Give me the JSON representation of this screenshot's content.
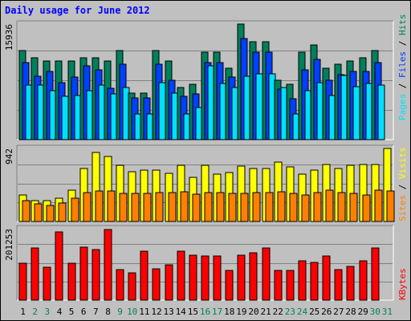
{
  "title": "Daily usage for June 2012",
  "colors": {
    "hits": "#00805c",
    "files": "#0040ff",
    "pages": "#00e0ff",
    "visits": "#ffff00",
    "sites": "#ff8000",
    "kbytes": "#ff0000",
    "weekday": "#000000",
    "weekend": "#00805c"
  },
  "chart_data": [
    {
      "type": "bar",
      "panel": "top",
      "categories": [
        "1",
        "2",
        "3",
        "4",
        "5",
        "6",
        "7",
        "8",
        "9",
        "10",
        "11",
        "12",
        "13",
        "14",
        "15",
        "16",
        "17",
        "18",
        "19",
        "20",
        "21",
        "22",
        "23",
        "24",
        "25",
        "26",
        "27",
        "28",
        "29",
        "30",
        "31"
      ],
      "ymax_label": "15936",
      "ylim": [
        0,
        15936
      ],
      "series": [
        {
          "name": "Hits",
          "values": [
            12300,
            11340,
            10860,
            10860,
            10860,
            11340,
            11340,
            10860,
            12300,
            6470,
            6470,
            12300,
            10860,
            7170,
            7640,
            12060,
            12060,
            9900,
            15936,
            13500,
            13500,
            8230,
            7640,
            12060,
            13020,
            9900,
            10380,
            10860,
            11340,
            12300,
            0
          ]
        },
        {
          "name": "Files",
          "values": [
            10620,
            8710,
            9420,
            7880,
            8590,
            10140,
            9660,
            7050,
            10380,
            5750,
            5750,
            10380,
            8230,
            5990,
            6350,
            10620,
            10620,
            8590,
            13980,
            12060,
            12060,
            6950,
            5630,
            9660,
            11100,
            8230,
            8950,
            9420,
            9420,
            10620,
            0
          ]
        },
        {
          "name": "Pages",
          "values": [
            7520,
            7520,
            6710,
            5990,
            6120,
            6710,
            7520,
            6350,
            7160,
            3590,
            3590,
            7880,
            6470,
            3590,
            4430,
            10140,
            7760,
            7160,
            8710,
            9060,
            9060,
            7160,
            3590,
            6710,
            7880,
            6110,
            8830,
            7290,
            7760,
            7520,
            0
          ]
        }
      ],
      "legend": [
        "Pages",
        "Files",
        "Hits"
      ],
      "grid": true
    },
    {
      "type": "bar",
      "panel": "middle",
      "categories": [
        "1",
        "2",
        "3",
        "4",
        "5",
        "6",
        "7",
        "8",
        "9",
        "10",
        "11",
        "12",
        "13",
        "14",
        "15",
        "16",
        "17",
        "18",
        "19",
        "20",
        "21",
        "22",
        "23",
        "24",
        "25",
        "26",
        "27",
        "28",
        "29",
        "30",
        "31"
      ],
      "ymax_label": "942",
      "ylim": [
        0,
        942
      ],
      "series": [
        {
          "name": "Visits",
          "values": [
            340,
            270,
            270,
            300,
            400,
            680,
            890,
            840,
            720,
            640,
            660,
            660,
            620,
            720,
            570,
            720,
            610,
            630,
            710,
            680,
            680,
            770,
            700,
            610,
            660,
            730,
            680,
            720,
            730,
            740,
            942
          ]
        },
        {
          "name": "Sites",
          "values": [
            270,
            230,
            210,
            240,
            300,
            370,
            390,
            390,
            360,
            360,
            360,
            370,
            370,
            380,
            350,
            370,
            370,
            360,
            360,
            370,
            370,
            380,
            360,
            340,
            370,
            400,
            370,
            360,
            340,
            400,
            390
          ]
        }
      ],
      "legend": [
        "Sites",
        "Visits"
      ],
      "grid": true
    },
    {
      "type": "bar",
      "panel": "bottom",
      "categories": [
        "1",
        "2",
        "3",
        "4",
        "5",
        "6",
        "7",
        "8",
        "9",
        "10",
        "11",
        "12",
        "13",
        "14",
        "15",
        "16",
        "17",
        "18",
        "19",
        "20",
        "21",
        "22",
        "23",
        "24",
        "25",
        "26",
        "27",
        "28",
        "29",
        "30",
        "31"
      ],
      "ymax_label": "201253",
      "ylim": [
        0,
        201253
      ],
      "series": [
        {
          "name": "KBytes",
          "values": [
            103000,
            148000,
            92000,
            193000,
            103000,
            150000,
            142000,
            199000,
            87000,
            77000,
            139000,
            89000,
            100000,
            139000,
            126000,
            124000,
            124000,
            83000,
            127000,
            134000,
            148000,
            83000,
            83000,
            110000,
            107000,
            124000,
            85000,
            94000,
            110000,
            148000,
            0
          ]
        }
      ],
      "legend": [
        "KBytes"
      ],
      "grid": true
    }
  ],
  "weekend_days": [
    "2",
    "3",
    "9",
    "10",
    "16",
    "17",
    "23",
    "24",
    "30",
    "31"
  ],
  "legends": {
    "top": [
      "Pages",
      "/",
      "Files",
      "/",
      "Hits"
    ],
    "middle": [
      "Sites",
      "/",
      "Visits"
    ],
    "bottom": [
      "KBytes"
    ]
  }
}
